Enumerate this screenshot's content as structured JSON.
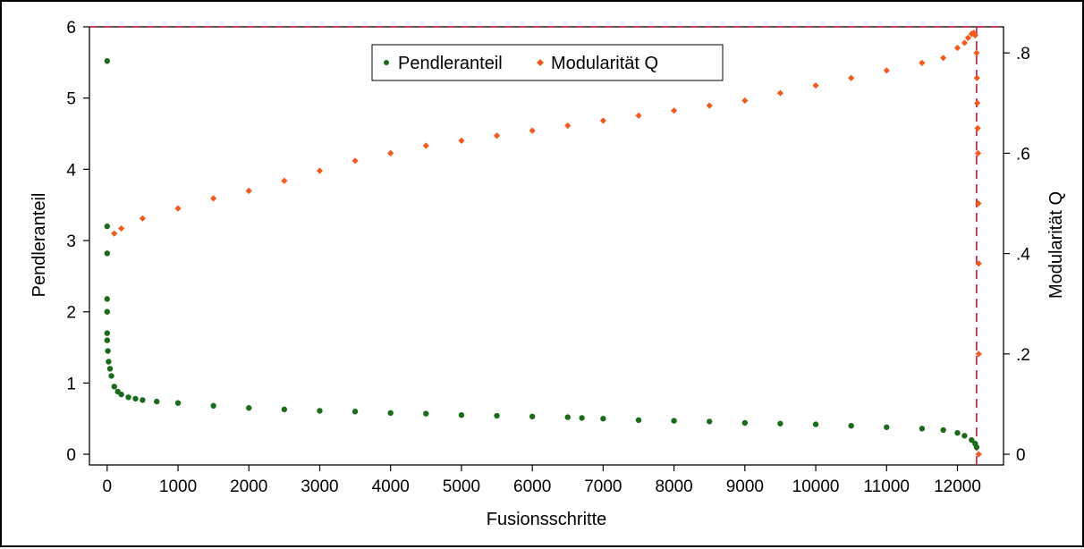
{
  "chart_data": {
    "type": "scatter",
    "title": "",
    "xlabel": "Fusionsschritte",
    "ylabel_left": "Pendleranteil",
    "ylabel_right": "Modularität Q",
    "xlim": [
      -250,
      12650
    ],
    "ylim_left": [
      -0.15,
      6.0
    ],
    "ylim_right": [
      -0.0213,
      0.852
    ],
    "x_ticks": [
      0,
      1000,
      2000,
      3000,
      4000,
      5000,
      6000,
      7000,
      8000,
      9000,
      10000,
      11000,
      12000
    ],
    "x_tick_labels": [
      "0",
      "1000",
      "2000",
      "3000",
      "4000",
      "5000",
      "6000",
      "7000",
      "8000",
      "9000",
      "10000",
      "11000",
      "12000"
    ],
    "y_left_ticks": [
      0,
      1,
      2,
      3,
      4,
      5,
      6
    ],
    "y_left_tick_labels": [
      "0",
      "1",
      "2",
      "3",
      "4",
      "5",
      "6"
    ],
    "y_right_ticks": [
      0,
      0.2,
      0.4,
      0.6,
      0.8
    ],
    "y_right_tick_labels": [
      "0",
      ".2",
      ".4",
      ".6",
      ".8"
    ],
    "grid": false,
    "legend_position": "top-center",
    "reference_lines": [
      {
        "orientation": "horizontal",
        "axis": "left",
        "value": 6,
        "color": "#c8143c",
        "style": "dashed"
      },
      {
        "orientation": "vertical",
        "value": 12270,
        "color": "#c8143c",
        "style": "dashed"
      }
    ],
    "series": [
      {
        "name": "Pendleranteil",
        "axis": "left",
        "marker": "circle",
        "color": "#1a6b1a",
        "x": [
          0,
          0,
          0,
          0,
          0,
          0,
          0,
          10,
          20,
          40,
          60,
          100,
          150,
          200,
          300,
          400,
          500,
          700,
          1000,
          1500,
          2000,
          2500,
          3000,
          3500,
          4000,
          4500,
          5000,
          5500,
          6000,
          6500,
          6700,
          7000,
          7500,
          8000,
          8500,
          9000,
          9500,
          10000,
          10500,
          11000,
          11500,
          11800,
          12000,
          12100,
          12200,
          12250,
          12270
        ],
        "y": [
          5.52,
          3.2,
          2.82,
          2.18,
          2.0,
          1.7,
          1.6,
          1.45,
          1.3,
          1.2,
          1.1,
          0.95,
          0.88,
          0.84,
          0.8,
          0.78,
          0.76,
          0.74,
          0.72,
          0.68,
          0.65,
          0.63,
          0.61,
          0.6,
          0.58,
          0.57,
          0.55,
          0.54,
          0.53,
          0.52,
          0.51,
          0.5,
          0.48,
          0.47,
          0.46,
          0.44,
          0.43,
          0.42,
          0.4,
          0.38,
          0.36,
          0.34,
          0.3,
          0.26,
          0.2,
          0.15,
          0.1
        ]
      },
      {
        "name": "Modularität Q",
        "axis": "right",
        "marker": "diamond",
        "color": "#f25a1e",
        "x": [
          100,
          200,
          500,
          1000,
          1500,
          2000,
          2500,
          3000,
          3500,
          4000,
          4500,
          5000,
          5500,
          6000,
          6500,
          7000,
          7500,
          8000,
          8500,
          9000,
          9500,
          10000,
          10500,
          11000,
          11500,
          11800,
          12000,
          12100,
          12150,
          12200,
          12230,
          12250,
          12270,
          12275,
          12280,
          12285,
          12290,
          12295,
          12300,
          12300,
          12300
        ],
        "y": [
          0.44,
          0.45,
          0.47,
          0.49,
          0.51,
          0.525,
          0.545,
          0.565,
          0.585,
          0.6,
          0.615,
          0.625,
          0.635,
          0.645,
          0.655,
          0.665,
          0.675,
          0.685,
          0.695,
          0.705,
          0.72,
          0.735,
          0.75,
          0.765,
          0.78,
          0.79,
          0.81,
          0.82,
          0.83,
          0.838,
          0.84,
          0.835,
          0.8,
          0.75,
          0.7,
          0.65,
          0.6,
          0.5,
          0.38,
          0.2,
          0.0
        ]
      }
    ]
  }
}
